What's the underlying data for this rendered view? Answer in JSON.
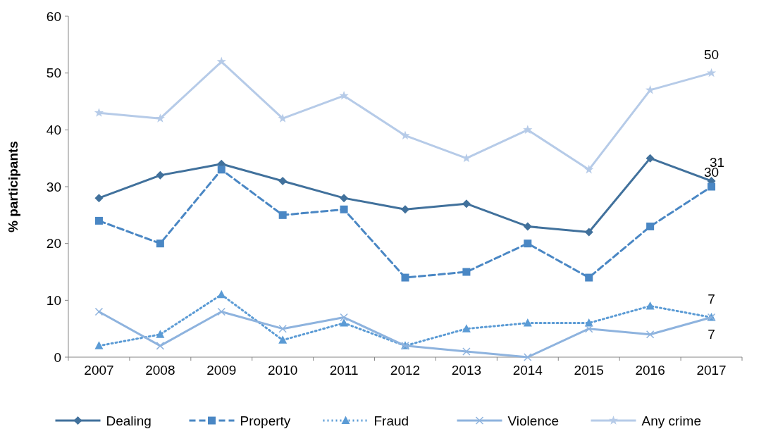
{
  "chart_data": {
    "type": "line",
    "ylabel": "% participants",
    "categories": [
      "2007",
      "2008",
      "2009",
      "2010",
      "2011",
      "2012",
      "2013",
      "2014",
      "2015",
      "2016",
      "2017"
    ],
    "ylim": [
      0,
      60
    ],
    "yticks": [
      0,
      10,
      20,
      30,
      40,
      50,
      60
    ],
    "legend": "bottom",
    "series": [
      {
        "name": "Dealing",
        "color": "#41719c",
        "marker": "diamond",
        "line_style": "solid",
        "values": [
          28,
          32,
          34,
          31,
          28,
          26,
          27,
          23,
          22,
          35,
          31
        ],
        "value_labels": [
          null,
          null,
          null,
          null,
          null,
          null,
          null,
          null,
          null,
          null,
          "31"
        ]
      },
      {
        "name": "Property",
        "color": "#4a87c4",
        "marker": "square",
        "line_style": "dashed",
        "values": [
          24,
          20,
          33,
          25,
          26,
          14,
          15,
          20,
          14,
          23,
          30
        ],
        "value_labels": [
          null,
          null,
          null,
          null,
          null,
          null,
          null,
          null,
          null,
          null,
          "30"
        ]
      },
      {
        "name": "Fraud",
        "color": "#5b9bd5",
        "marker": "triangle",
        "line_style": "dotted",
        "values": [
          2,
          4,
          11,
          3,
          6,
          2,
          5,
          6,
          6,
          9,
          7
        ],
        "value_labels": [
          null,
          null,
          null,
          null,
          null,
          null,
          null,
          null,
          null,
          null,
          "7"
        ]
      },
      {
        "name": "Violence",
        "color": "#8eb3de",
        "marker": "cross",
        "line_style": "solid",
        "values": [
          8,
          2,
          8,
          5,
          7,
          2,
          1,
          0,
          5,
          4,
          7
        ],
        "value_labels": [
          null,
          null,
          null,
          null,
          null,
          null,
          null,
          null,
          null,
          null,
          "7"
        ]
      },
      {
        "name": "Any crime",
        "color": "#b6cbe8",
        "marker": "star",
        "line_style": "solid",
        "values": [
          43,
          42,
          52,
          42,
          46,
          39,
          35,
          40,
          33,
          47,
          50
        ],
        "value_labels": [
          null,
          null,
          null,
          null,
          null,
          null,
          null,
          null,
          null,
          null,
          "50"
        ]
      }
    ]
  }
}
